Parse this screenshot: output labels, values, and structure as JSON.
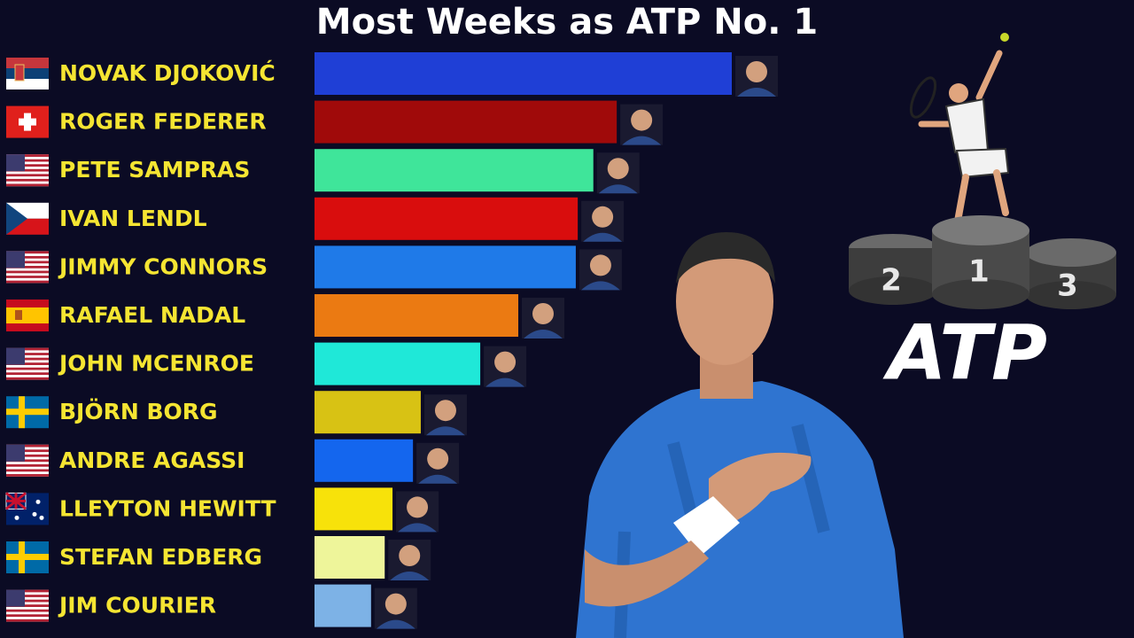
{
  "chart_data": {
    "type": "bar",
    "orientation": "horizontal",
    "title": "Most Weeks as ATP No. 1",
    "categories": [
      "NOVAK DJOKOVIĆ",
      "ROGER FEDERER",
      "PETE SAMPRAS",
      "IVAN LENDL",
      "JIMMY CONNORS",
      "RAFAEL NADAL",
      "JOHN MCENROE",
      "BJÖRN BORG",
      "ANDRE AGASSI",
      "LLEYTON HEWITT",
      "STEFAN EDBERG",
      "JIM COURIER"
    ],
    "values": [
      428,
      310,
      286,
      270,
      268,
      209,
      170,
      109,
      101,
      80,
      72,
      58
    ],
    "colors": [
      "#1f3fd6",
      "#a00a0a",
      "#3fe59a",
      "#d90d0d",
      "#1f7ae8",
      "#eb7a12",
      "#1fe8d8",
      "#d8c214",
      "#1466ee",
      "#f7e20a",
      "#eef59a",
      "#7db2e6"
    ]
  },
  "decorations": {
    "podium_labels": [
      "2",
      "1",
      "3"
    ],
    "logo": "ATP"
  }
}
